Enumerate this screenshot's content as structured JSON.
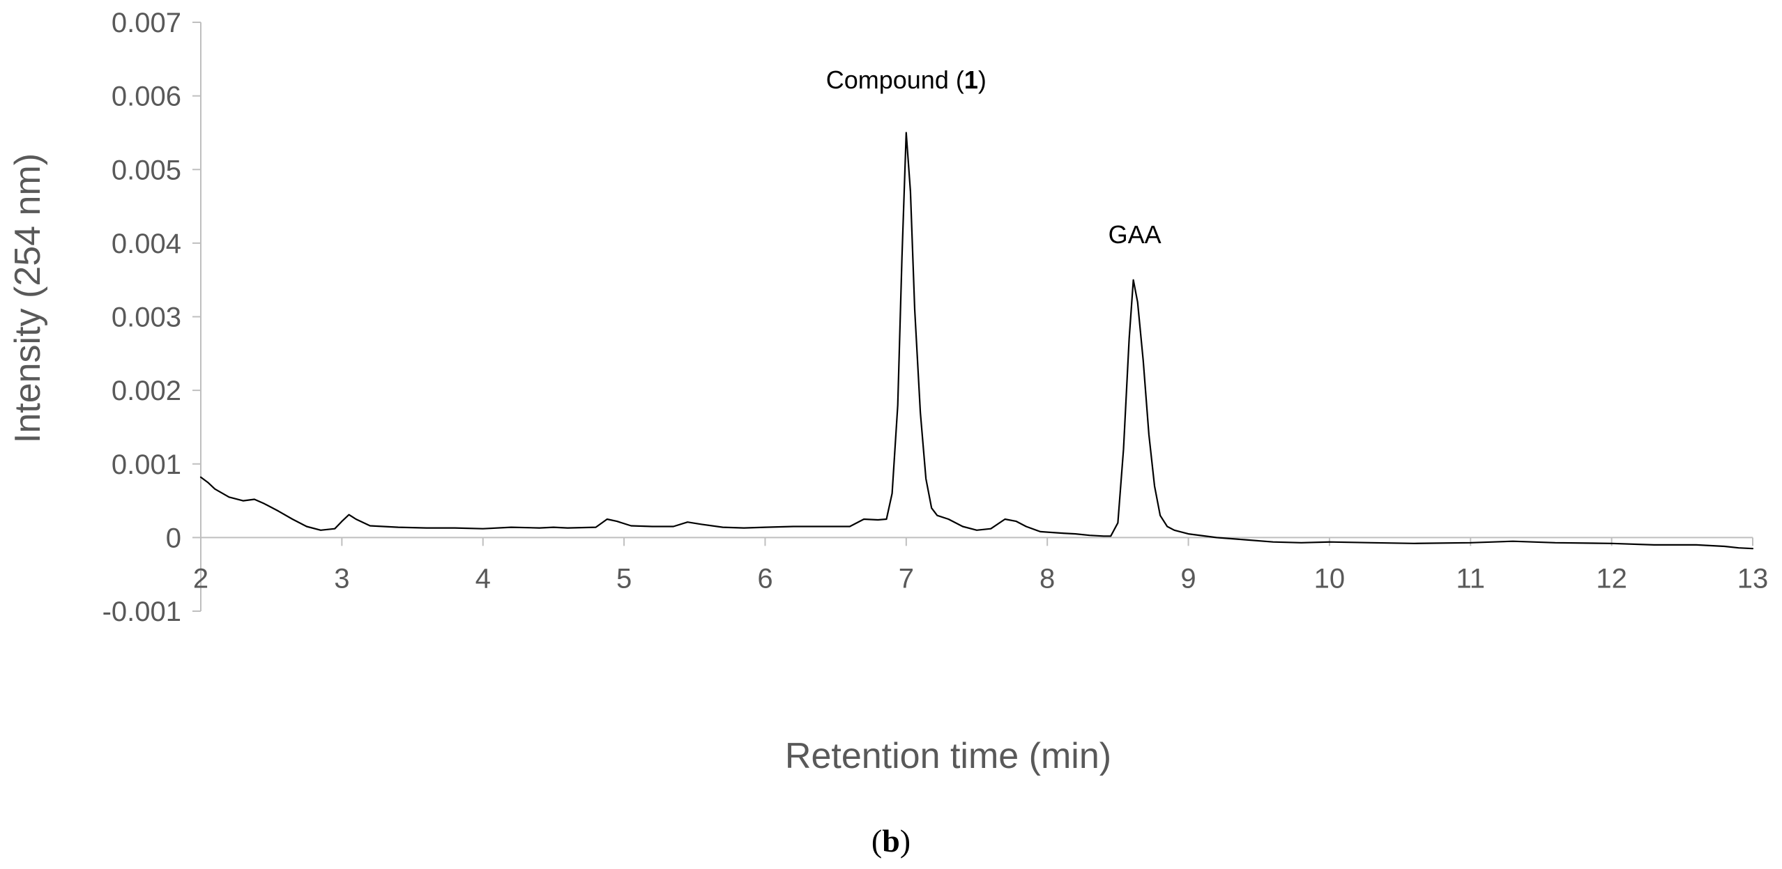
{
  "chart_data": {
    "type": "line",
    "title": "",
    "xlabel": "Retention time (min)",
    "ylabel": "Intensity (254 nm)",
    "xlim": [
      2,
      13
    ],
    "ylim": [
      -0.001,
      0.007
    ],
    "x_ticks": [
      2,
      3,
      4,
      5,
      6,
      7,
      8,
      9,
      10,
      11,
      12,
      13
    ],
    "x_tick_labels": [
      "2",
      "3",
      "4",
      "5",
      "6",
      "7",
      "8",
      "9",
      "10",
      "11",
      "12",
      "13"
    ],
    "y_ticks": [
      -0.001,
      0,
      0.001,
      0.002,
      0.003,
      0.004,
      0.005,
      0.006,
      0.007
    ],
    "y_tick_labels": [
      "-0.001",
      "0",
      "0.001",
      "0.002",
      "0.003",
      "0.004",
      "0.005",
      "0.006",
      "0.007"
    ],
    "grid": false,
    "line_color": "#000000",
    "series": [
      {
        "x": [
          2.0,
          2.05,
          2.1,
          2.2,
          2.3,
          2.38,
          2.45,
          2.55,
          2.65,
          2.75,
          2.85,
          2.95,
          3.0,
          3.05,
          3.1,
          3.2,
          3.4,
          3.6,
          3.8,
          4.0,
          4.2,
          4.4,
          4.5,
          4.6,
          4.8,
          4.88,
          4.95,
          5.05,
          5.2,
          5.35,
          5.45,
          5.55,
          5.7,
          5.85,
          6.0,
          6.2,
          6.4,
          6.6,
          6.7,
          6.8,
          6.86,
          6.9,
          6.94,
          6.97,
          7.0,
          7.03,
          7.06,
          7.1,
          7.14,
          7.18,
          7.22,
          7.3,
          7.4,
          7.5,
          7.6,
          7.7,
          7.78,
          7.85,
          7.95,
          8.1,
          8.2,
          8.3,
          8.4,
          8.45,
          8.5,
          8.54,
          8.58,
          8.61,
          8.64,
          8.68,
          8.72,
          8.76,
          8.8,
          8.85,
          8.9,
          9.0,
          9.2,
          9.4,
          9.6,
          9.8,
          10.0,
          10.3,
          10.6,
          11.0,
          11.3,
          11.6,
          12.0,
          12.3,
          12.6,
          12.8,
          12.9,
          13.0
        ],
        "values": [
          0.00082,
          0.00075,
          0.00066,
          0.00055,
          0.0005,
          0.00052,
          0.00046,
          0.00036,
          0.00025,
          0.00015,
          0.0001,
          0.00012,
          0.00022,
          0.00031,
          0.00025,
          0.00016,
          0.00014,
          0.00013,
          0.00013,
          0.00012,
          0.00014,
          0.00013,
          0.00014,
          0.00013,
          0.00014,
          0.00025,
          0.00022,
          0.00016,
          0.00015,
          0.00015,
          0.00021,
          0.00018,
          0.00014,
          0.00013,
          0.00014,
          0.00015,
          0.00015,
          0.00015,
          0.00025,
          0.00024,
          0.00025,
          0.0006,
          0.0018,
          0.0038,
          0.0055,
          0.0047,
          0.0031,
          0.0017,
          0.0008,
          0.0004,
          0.0003,
          0.00025,
          0.00015,
          0.0001,
          0.00012,
          0.00025,
          0.00022,
          0.00015,
          8e-05,
          6e-05,
          5e-05,
          3e-05,
          2e-05,
          2e-05,
          0.0002,
          0.0012,
          0.0027,
          0.0035,
          0.0032,
          0.0024,
          0.0014,
          0.0007,
          0.0003,
          0.00015,
          0.0001,
          5e-05,
          0.0,
          -3e-05,
          -6e-05,
          -7e-05,
          -6e-05,
          -7e-05,
          -8e-05,
          -7e-05,
          -5e-05,
          -7e-05,
          -8e-05,
          -0.0001,
          -0.0001,
          -0.00012,
          -0.00014,
          -0.00015
        ]
      }
    ],
    "annotations": [
      {
        "text": "Compound (",
        "bold_part": "1",
        "suffix": ")",
        "x": 7.0,
        "y": 0.0061
      },
      {
        "text": "GAA",
        "x": 8.62,
        "y": 0.004
      }
    ],
    "panel_label": {
      "open": "(",
      "letter": "b",
      "close": ")"
    }
  }
}
